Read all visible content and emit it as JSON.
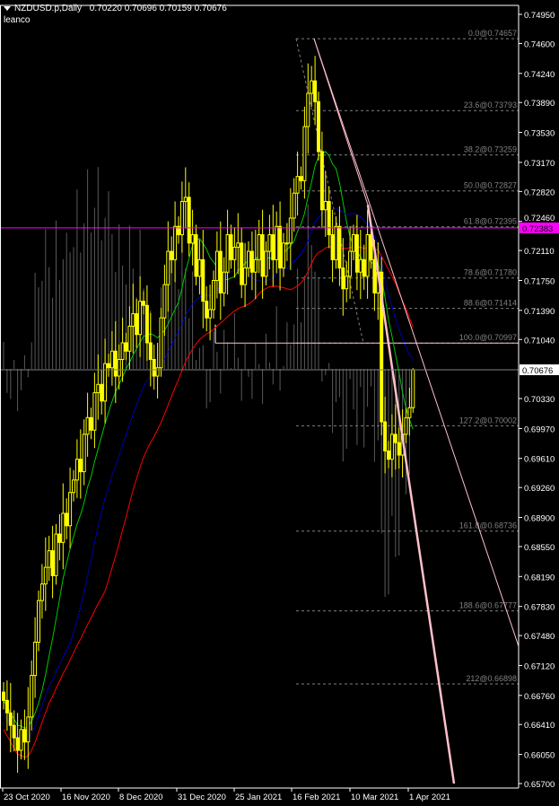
{
  "header": {
    "symbol": "NZDUSD.p,Daily",
    "open": "0.70220",
    "high": "0.70696",
    "low": "0.70159",
    "close": "0.70676",
    "indicator_label": "leanco"
  },
  "colors": {
    "background": "#000000",
    "axis": "#ffffff",
    "bull_candle": "#ffff00",
    "bear_candle": "#ffff00",
    "ma_fast": "#00c800",
    "ma_mid": "#0000ff",
    "ma_slow": "#ff0000",
    "horizontal_line": "#ff00ff",
    "trendline": "#ffc0cb",
    "fibo": "#808080",
    "histogram": "#5a5a5a",
    "price_line": "#808080"
  },
  "chart_data": {
    "type": "candlestick",
    "title": "NZDUSD.p,Daily",
    "ylim": [
      0.657,
      0.7495
    ],
    "y_ticks": [
      "0.74950",
      "0.74600",
      "0.74240",
      "0.73890",
      "0.73530",
      "0.73170",
      "0.72820",
      "0.72460",
      "0.72110",
      "0.71750",
      "0.71390",
      "0.71040",
      "0.70330",
      "0.69970",
      "0.69610",
      "0.69260",
      "0.68900",
      "0.68550",
      "0.68190",
      "0.67830",
      "0.67480",
      "0.67120",
      "0.66760",
      "0.66410",
      "0.66050",
      "0.65700"
    ],
    "x_ticks": [
      "23 Oct 2020",
      "16 Nov 2020",
      "8 Dec 2020",
      "31 Dec 2020",
      "25 Jan 2021",
      "16 Feb 2021",
      "10 Mar 2021",
      "1 Apr 2021"
    ],
    "closes": [
      0.667,
      0.6655,
      0.664,
      0.6625,
      0.661,
      0.6635,
      0.662,
      0.665,
      0.67,
      0.674,
      0.679,
      0.681,
      0.683,
      0.685,
      0.682,
      0.687,
      0.686,
      0.6895,
      0.688,
      0.692,
      0.6935,
      0.696,
      0.6945,
      0.699,
      0.701,
      0.6995,
      0.704,
      0.705,
      0.703,
      0.7075,
      0.707,
      0.709,
      0.706,
      0.708,
      0.71,
      0.709,
      0.712,
      0.7135,
      0.711,
      0.715,
      0.7145,
      0.71,
      0.708,
      0.706,
      0.707,
      0.713,
      0.717,
      0.721,
      0.72,
      0.724,
      0.723,
      0.727,
      0.7275,
      0.722,
      0.723,
      0.718,
      0.72,
      0.715,
      0.713,
      0.714,
      0.7175,
      0.721,
      0.716,
      0.7185,
      0.723,
      0.72,
      0.7215,
      0.722,
      0.717,
      0.719,
      0.721,
      0.7185,
      0.72,
      0.723,
      0.718,
      0.721,
      0.723,
      0.72,
      0.724,
      0.719,
      0.722,
      0.722,
      0.725,
      0.728,
      0.73,
      0.7295,
      0.736,
      0.74,
      0.7415,
      0.739,
      0.733,
      0.726,
      0.727,
      0.723,
      0.72,
      0.724,
      0.719,
      0.7165,
      0.718,
      0.721,
      0.723,
      0.7185,
      0.72,
      0.718,
      0.723,
      0.72,
      0.716,
      0.7185,
      0.7005,
      0.697,
      0.696,
      0.699,
      0.698,
      0.6965,
      0.699,
      0.701,
      0.7022,
      0.70676
    ],
    "last_candle": {
      "open": 0.7022,
      "high": 0.70696,
      "low": 0.70159,
      "close": 0.70676
    },
    "ma_periods": [
      10,
      20,
      30
    ],
    "current_price": "0.70676",
    "horizontal_line": {
      "price": 0.72383,
      "label": "0.72383"
    },
    "fibo_levels": [
      {
        "price": 0.74657,
        "label": "0.0@0.74657"
      },
      {
        "price": 0.73793,
        "label": "23.6@0.73793"
      },
      {
        "price": 0.73259,
        "label": "38.2@0.73259"
      },
      {
        "price": 0.72827,
        "label": "50.0@0.72827"
      },
      {
        "price": 0.72395,
        "label": "61.8@0.72395"
      },
      {
        "price": 0.7178,
        "label": "78.6@0.71780"
      },
      {
        "price": 0.71414,
        "label": "88.6@0.71414"
      },
      {
        "price": 0.70997,
        "label": "100.0@0.70997"
      },
      {
        "price": 0.70002,
        "label": "127.2@0.70002"
      },
      {
        "price": 0.68736,
        "label": "161.8@0.68736"
      },
      {
        "price": 0.67777,
        "label": "188.6@0.67777"
      },
      {
        "price": 0.66898,
        "label": "212@0.66898"
      }
    ],
    "grid": false
  }
}
